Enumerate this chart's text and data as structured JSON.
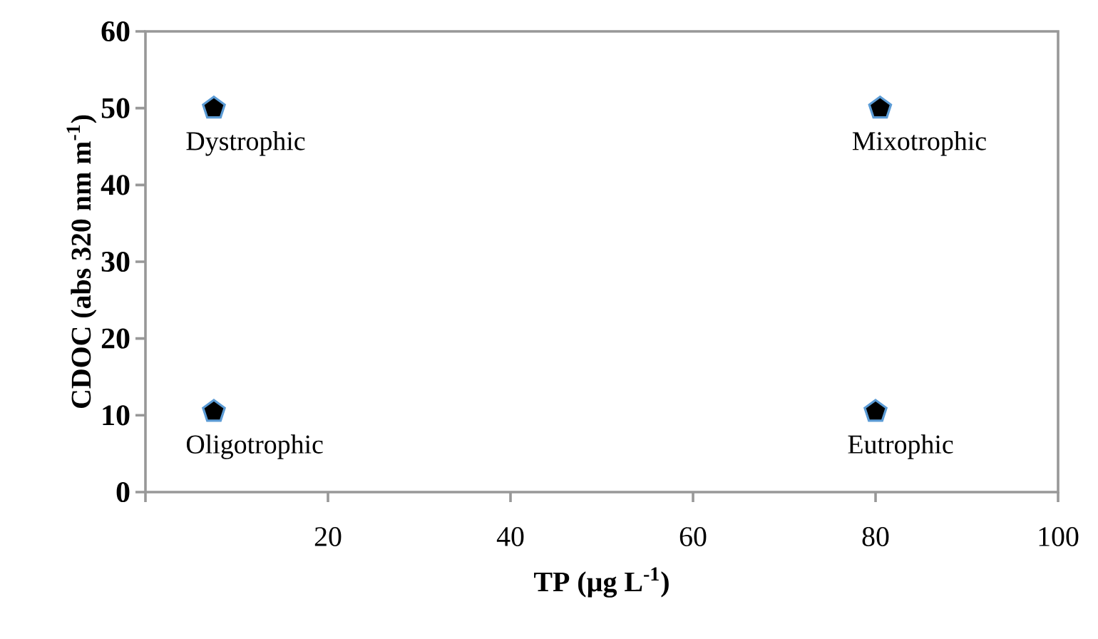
{
  "chart_data": {
    "type": "scatter",
    "xlabel": "TP (µg L$^{-1}$)",
    "ylabel": "CDOC (abs 320 nm m$^{-1}$)",
    "x": [
      7.5,
      7.5,
      80.5,
      80
    ],
    "series": [
      {
        "color": "#000000",
        "values": [
          50,
          10.5,
          50,
          10.5
        ]
      }
    ],
    "xlim": [
      0,
      100
    ],
    "xticks": [
      {
        "value": 0,
        "label": null
      },
      20,
      40,
      60,
      80,
      100
    ],
    "ylim": [
      0,
      60
    ],
    "yticks": [
      0,
      10,
      20,
      30,
      40,
      50,
      60
    ],
    "annotations": [
      {
        "text": "Dystrophic",
        "x": 7.5,
        "y": 50
      },
      {
        "text": "Oligotrophic",
        "x": 7.5,
        "y": 10.5
      },
      {
        "text": "Mixotrophic",
        "x": 80.5,
        "y": 50
      },
      {
        "text": "Eutrophic",
        "x": 80,
        "y": 10.5
      }
    ]
  }
}
